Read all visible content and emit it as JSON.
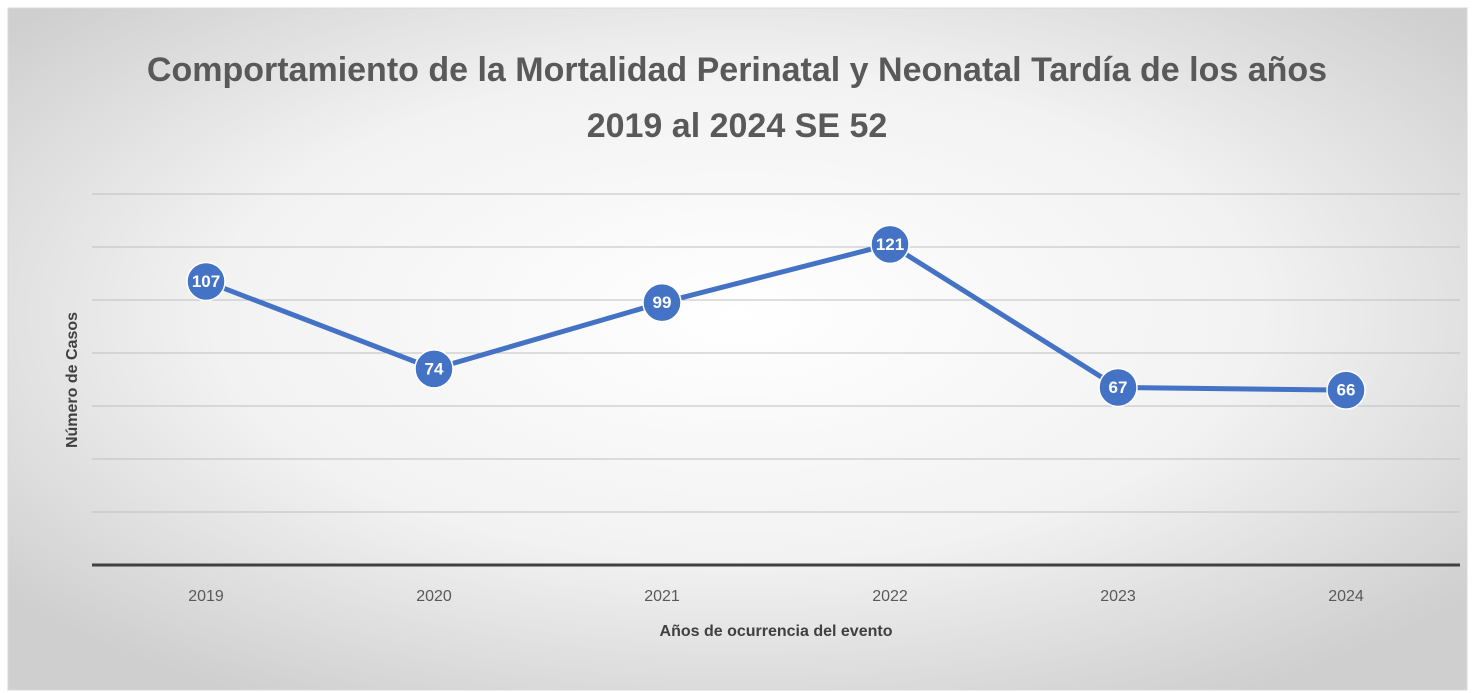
{
  "chart_data": {
    "type": "line",
    "title": "Comportamiento de la Mortalidad Perinatal y Neonatal Tardía de los años 2019 al 2024 SE 52",
    "x_label": "Años de ocurrencia del evento",
    "y_label": "Número de Casos",
    "categories": [
      "2019",
      "2020",
      "2021",
      "2022",
      "2023",
      "2024"
    ],
    "series": [
      {
        "name": "Casos",
        "color": "#4472c4",
        "values": [
          107,
          74,
          99,
          121,
          67,
          66
        ]
      }
    ],
    "ylim": [
      0,
      140
    ],
    "yticks": [
      0,
      20,
      40,
      60,
      80,
      100,
      120,
      140
    ],
    "grid": true
  }
}
